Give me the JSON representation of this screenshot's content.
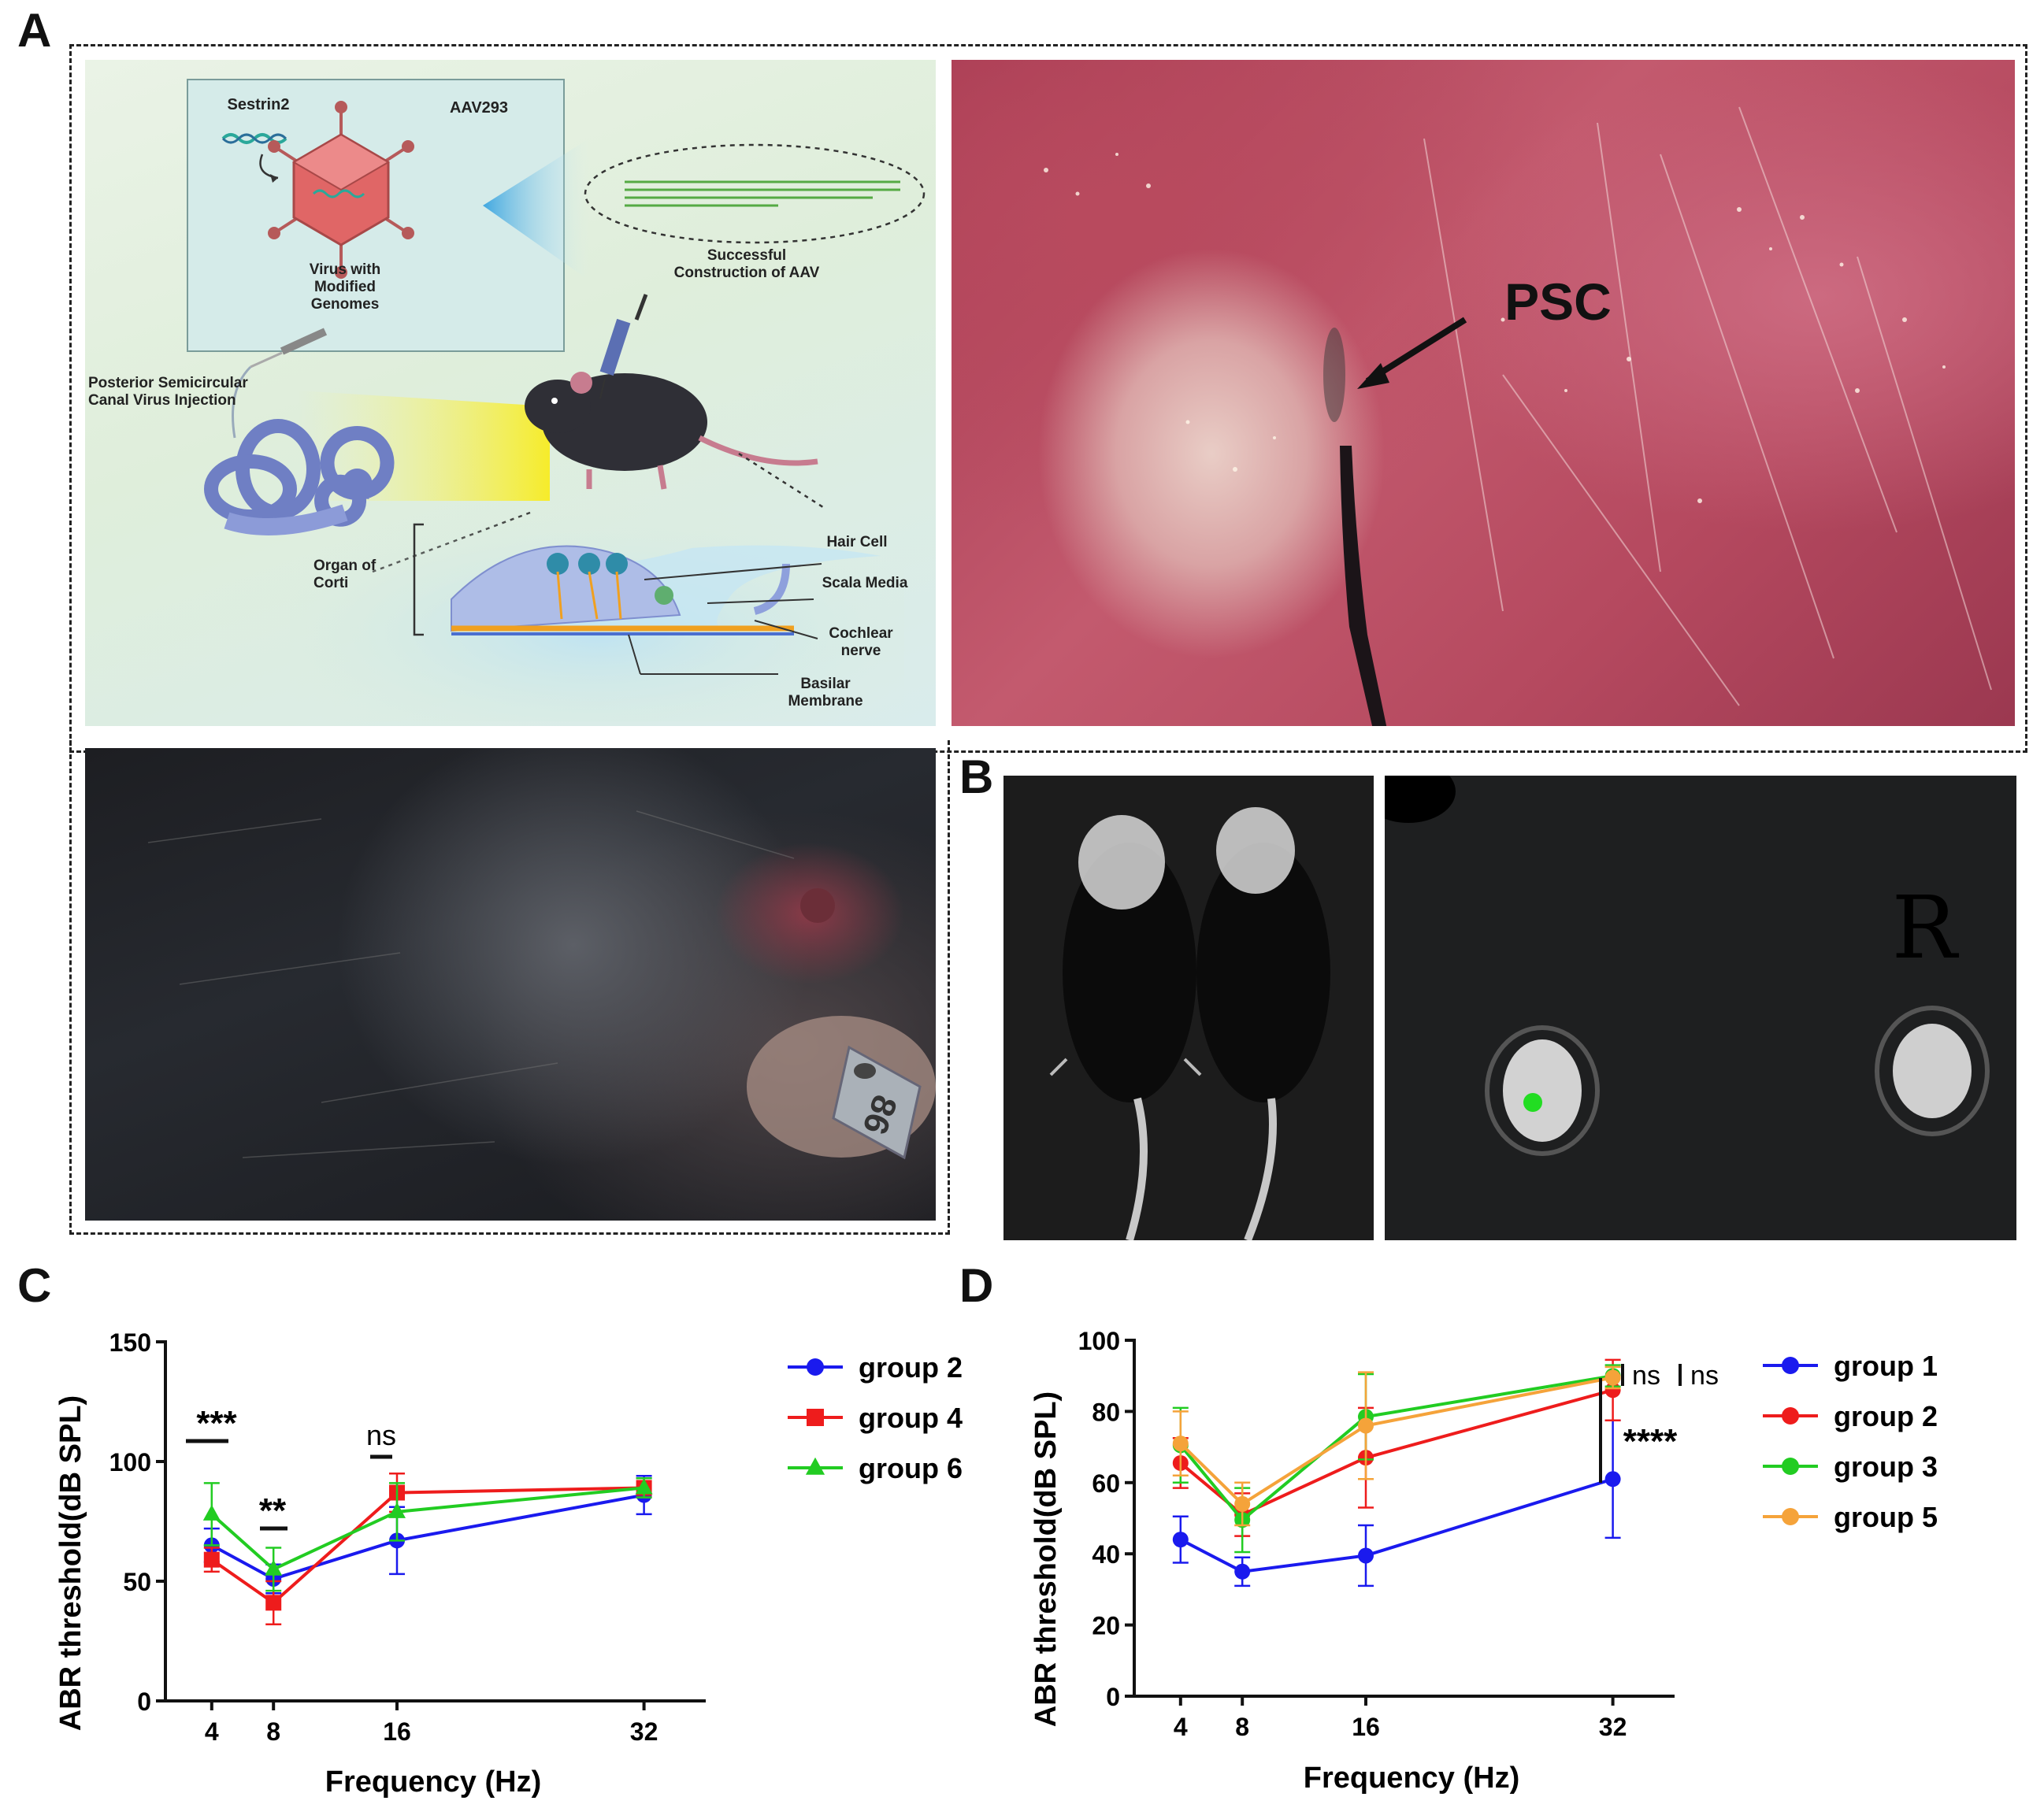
{
  "panels": {
    "a": "A",
    "b": "B",
    "c": "C",
    "d": "D"
  },
  "schematic": {
    "gene": "Sestrin2",
    "vector": "AAV293",
    "virus_caption": "Virus with\nModified\nGenomes",
    "construction": "Successful\nConstruction of AAV",
    "injection": "Posterior Semicircular\nCanal Virus Injection",
    "organ": "Organ of\nCorti",
    "hair_cell": "Hair Cell",
    "scala_media": "Scala Media",
    "cochlear_nerve": "Cochlear\nnerve",
    "basilar": "Basilar\nMembrane"
  },
  "photo_label": "PSC",
  "tag_text": "86",
  "ear_mark": "R",
  "colors": {
    "blue": "#1a1aee",
    "red": "#ee1c1c",
    "green": "#22cc22",
    "orange": "#f5a33a"
  },
  "chart_data": [
    {
      "type": "line",
      "panel": "C",
      "x": [
        4,
        8,
        16,
        32
      ],
      "xticks": [
        "4",
        "8",
        "16",
        "32"
      ],
      "xlabel": "Frequency (Hz)",
      "ylabel": "ABR threshold(dB SPL)",
      "ylim": [
        0,
        150
      ],
      "yticks": [
        "0",
        "50",
        "100",
        "150"
      ],
      "legend": "right",
      "series": [
        {
          "name": "group 2",
          "color": "#1a1aee",
          "marker": "circle",
          "values": [
            65,
            51,
            67,
            86
          ],
          "err": [
            7,
            6,
            14,
            8
          ]
        },
        {
          "name": "group 4",
          "color": "#ee1c1c",
          "marker": "square",
          "values": [
            59,
            41,
            87,
            89
          ],
          "err": [
            5,
            9,
            8,
            4
          ]
        },
        {
          "name": "group 6",
          "color": "#22cc22",
          "marker": "triangle",
          "values": [
            78,
            55,
            79,
            89
          ],
          "err": [
            13,
            9,
            12,
            4
          ]
        }
      ],
      "annotations": [
        "***",
        "**",
        "ns"
      ]
    },
    {
      "type": "line",
      "panel": "D",
      "x": [
        4,
        8,
        16,
        32
      ],
      "xticks": [
        "4",
        "8",
        "16",
        "32"
      ],
      "xlabel": "Frequency (Hz)",
      "ylabel": "ABR threshold(dB SPL)",
      "ylim": [
        0,
        100
      ],
      "yticks": [
        "0",
        "20",
        "40",
        "60",
        "80",
        "100"
      ],
      "legend": "right",
      "series": [
        {
          "name": "group 1",
          "color": "#1a1aee",
          "marker": "circle",
          "values": [
            44,
            35,
            39.5,
            61
          ],
          "err": [
            6.5,
            4,
            8.5,
            16.5
          ]
        },
        {
          "name": "group 2",
          "color": "#ee1c1c",
          "marker": "circle",
          "values": [
            65.5,
            51,
            67,
            86
          ],
          "err": [
            7,
            6,
            14,
            8.5
          ]
        },
        {
          "name": "group 3",
          "color": "#22cc22",
          "marker": "circle",
          "values": [
            70.5,
            49.5,
            78.5,
            90
          ],
          "err": [
            10.5,
            9,
            12,
            3
          ]
        },
        {
          "name": "group 5",
          "color": "#f5a33a",
          "marker": "circle",
          "values": [
            71,
            54,
            76,
            89.5
          ],
          "err": [
            9,
            6,
            15,
            3
          ]
        }
      ],
      "annotations": [
        "ns",
        "ns",
        "****"
      ]
    }
  ]
}
